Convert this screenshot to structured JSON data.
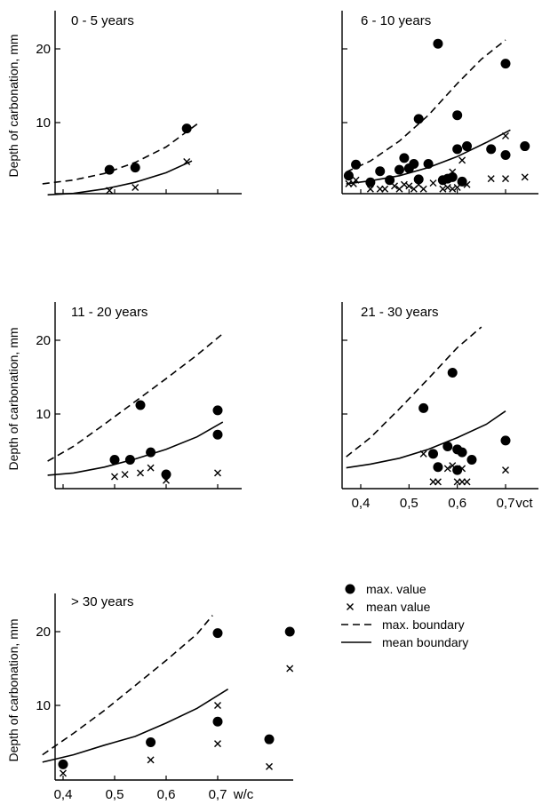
{
  "ylabel": "Depth of carbonation, mm",
  "x_tick_labels": [
    "0,4",
    "0,5",
    "0,6",
    "0,7"
  ],
  "y_tick_labels": [
    "10",
    "20"
  ],
  "legend": [
    {
      "label": "max. value",
      "marker": "filled-circle"
    },
    {
      "label": "mean value",
      "marker": "cross"
    },
    {
      "label": "max. boundary",
      "marker": "dashed-line"
    },
    {
      "label": "mean boundary",
      "marker": "solid-line"
    }
  ],
  "chart_data": [
    {
      "type": "scatter",
      "title": "0 - 5 years",
      "xlabel": "",
      "ylabel": "Depth of carbonation, mm",
      "xlim": [
        0.36,
        0.76
      ],
      "ylim": [
        0,
        24
      ],
      "series": [
        {
          "name": "max. value",
          "marker": "filled-circle",
          "points": [
            [
              0.49,
              3.6
            ],
            [
              0.54,
              3.9
            ],
            [
              0.64,
              9.2
            ]
          ]
        },
        {
          "name": "mean value",
          "marker": "cross",
          "points": [
            [
              0.49,
              0.8
            ],
            [
              0.54,
              1.2
            ],
            [
              0.64,
              4.7
            ]
          ]
        },
        {
          "name": "max. boundary",
          "line": "dashed",
          "points": [
            [
              0.36,
              1.7
            ],
            [
              0.42,
              2.2
            ],
            [
              0.48,
              3.1
            ],
            [
              0.54,
              4.6
            ],
            [
              0.6,
              6.7
            ],
            [
              0.66,
              9.8
            ]
          ]
        },
        {
          "name": "mean boundary",
          "line": "solid",
          "points": [
            [
              0.37,
              0.2
            ],
            [
              0.42,
              0.4
            ],
            [
              0.48,
              1.0
            ],
            [
              0.54,
              1.9
            ],
            [
              0.6,
              3.2
            ],
            [
              0.65,
              4.8
            ]
          ]
        }
      ]
    },
    {
      "type": "scatter",
      "title": "6 - 10 years",
      "xlabel": "",
      "ylabel": "",
      "xlim": [
        0.36,
        0.76
      ],
      "ylim": [
        0,
        24
      ],
      "series": [
        {
          "name": "max. value",
          "marker": "filled-circle",
          "points": [
            [
              0.375,
              2.8
            ],
            [
              0.39,
              4.3
            ],
            [
              0.42,
              1.9
            ],
            [
              0.44,
              3.4
            ],
            [
              0.46,
              2.2
            ],
            [
              0.48,
              3.6
            ],
            [
              0.49,
              5.2
            ],
            [
              0.5,
              3.8
            ],
            [
              0.51,
              4.4
            ],
            [
              0.52,
              2.3
            ],
            [
              0.52,
              10.5
            ],
            [
              0.54,
              4.4
            ],
            [
              0.56,
              20.7
            ],
            [
              0.57,
              2.2
            ],
            [
              0.58,
              2.4
            ],
            [
              0.59,
              2.6
            ],
            [
              0.6,
              11.0
            ],
            [
              0.6,
              6.4
            ],
            [
              0.61,
              2.0
            ],
            [
              0.62,
              6.8
            ],
            [
              0.67,
              6.4
            ],
            [
              0.7,
              18.0
            ],
            [
              0.7,
              5.6
            ],
            [
              0.74,
              6.8
            ]
          ]
        },
        {
          "name": "mean value",
          "marker": "cross",
          "points": [
            [
              0.375,
              1.7
            ],
            [
              0.385,
              1.7
            ],
            [
              0.39,
              2.2
            ],
            [
              0.42,
              1.0
            ],
            [
              0.44,
              1.0
            ],
            [
              0.45,
              1.0
            ],
            [
              0.47,
              1.4
            ],
            [
              0.48,
              1.0
            ],
            [
              0.49,
              1.6
            ],
            [
              0.5,
              1.4
            ],
            [
              0.51,
              1.0
            ],
            [
              0.52,
              1.6
            ],
            [
              0.53,
              1.0
            ],
            [
              0.55,
              1.8
            ],
            [
              0.57,
              1.0
            ],
            [
              0.58,
              1.2
            ],
            [
              0.59,
              3.3
            ],
            [
              0.59,
              1.0
            ],
            [
              0.6,
              1.2
            ],
            [
              0.61,
              4.9
            ],
            [
              0.62,
              1.6
            ],
            [
              0.67,
              2.4
            ],
            [
              0.7,
              8.2
            ],
            [
              0.7,
              2.4
            ],
            [
              0.74,
              2.6
            ]
          ]
        },
        {
          "name": "max. boundary",
          "line": "dashed",
          "points": [
            [
              0.37,
              3.3
            ],
            [
              0.42,
              4.8
            ],
            [
              0.48,
              7.5
            ],
            [
              0.54,
              11.0
            ],
            [
              0.6,
              15.3
            ],
            [
              0.65,
              18.6
            ],
            [
              0.7,
              21.2
            ]
          ]
        },
        {
          "name": "mean boundary",
          "line": "solid",
          "points": [
            [
              0.37,
              1.7
            ],
            [
              0.42,
              2.1
            ],
            [
              0.48,
              2.8
            ],
            [
              0.54,
              3.9
            ],
            [
              0.6,
              5.4
            ],
            [
              0.66,
              7.3
            ],
            [
              0.71,
              9.0
            ]
          ]
        }
      ]
    },
    {
      "type": "scatter",
      "title": "11 - 20 years",
      "xlabel": "",
      "ylabel": "Depth of carbonation, mm",
      "xlim": [
        0.36,
        0.76
      ],
      "ylim": [
        0,
        24
      ],
      "series": [
        {
          "name": "max. value",
          "marker": "filled-circle",
          "points": [
            [
              0.5,
              3.8
            ],
            [
              0.53,
              3.8
            ],
            [
              0.55,
              11.2
            ],
            [
              0.57,
              4.8
            ],
            [
              0.6,
              1.8
            ],
            [
              0.7,
              10.5
            ],
            [
              0.7,
              7.2
            ]
          ]
        },
        {
          "name": "mean value",
          "marker": "cross",
          "points": [
            [
              0.5,
              1.5
            ],
            [
              0.52,
              1.8
            ],
            [
              0.55,
              2.0
            ],
            [
              0.57,
              2.7
            ],
            [
              0.6,
              1.0
            ],
            [
              0.7,
              2.0
            ]
          ]
        },
        {
          "name": "max. boundary",
          "line": "dashed",
          "points": [
            [
              0.37,
              3.6
            ],
            [
              0.42,
              5.6
            ],
            [
              0.48,
              8.6
            ],
            [
              0.54,
              11.7
            ],
            [
              0.6,
              14.8
            ],
            [
              0.66,
              18.0
            ],
            [
              0.71,
              20.9
            ]
          ]
        },
        {
          "name": "mean boundary",
          "line": "solid",
          "points": [
            [
              0.37,
              1.7
            ],
            [
              0.42,
              2.0
            ],
            [
              0.48,
              2.8
            ],
            [
              0.54,
              3.9
            ],
            [
              0.6,
              5.2
            ],
            [
              0.66,
              6.9
            ],
            [
              0.71,
              8.9
            ]
          ]
        }
      ]
    },
    {
      "type": "scatter",
      "title": "21 - 30 years",
      "xlabel": "vct",
      "ylabel": "",
      "xlim": [
        0.36,
        0.76
      ],
      "ylim": [
        0,
        24
      ],
      "series": [
        {
          "name": "max. value",
          "marker": "filled-circle",
          "points": [
            [
              0.53,
              10.8
            ],
            [
              0.55,
              4.6
            ],
            [
              0.56,
              2.8
            ],
            [
              0.58,
              5.6
            ],
            [
              0.59,
              15.6
            ],
            [
              0.6,
              5.2
            ],
            [
              0.6,
              2.4
            ],
            [
              0.61,
              4.8
            ],
            [
              0.63,
              3.8
            ],
            [
              0.7,
              6.4
            ]
          ]
        },
        {
          "name": "mean value",
          "marker": "cross",
          "points": [
            [
              0.53,
              4.6
            ],
            [
              0.55,
              0.8
            ],
            [
              0.56,
              0.8
            ],
            [
              0.58,
              2.6
            ],
            [
              0.59,
              3.0
            ],
            [
              0.6,
              0.8
            ],
            [
              0.61,
              2.6
            ],
            [
              0.61,
              0.8
            ],
            [
              0.62,
              0.8
            ],
            [
              0.7,
              2.4
            ]
          ]
        },
        {
          "name": "max. boundary",
          "line": "dashed",
          "points": [
            [
              0.37,
              4.2
            ],
            [
              0.42,
              6.8
            ],
            [
              0.48,
              10.7
            ],
            [
              0.54,
              14.8
            ],
            [
              0.6,
              19.0
            ],
            [
              0.65,
              21.8
            ]
          ]
        },
        {
          "name": "mean boundary",
          "line": "solid",
          "points": [
            [
              0.37,
              2.7
            ],
            [
              0.42,
              3.2
            ],
            [
              0.48,
              4.0
            ],
            [
              0.54,
              5.2
            ],
            [
              0.6,
              6.8
            ],
            [
              0.66,
              8.6
            ],
            [
              0.7,
              10.4
            ]
          ]
        }
      ]
    },
    {
      "type": "scatter",
      "title": "> 30 years",
      "xlabel": "w/c",
      "ylabel": "Depth of carbonation, mm",
      "xlim": [
        0.36,
        0.86
      ],
      "ylim": [
        0,
        24
      ],
      "series": [
        {
          "name": "max. value",
          "marker": "filled-circle",
          "points": [
            [
              0.4,
              2.0
            ],
            [
              0.57,
              5.0
            ],
            [
              0.7,
              19.8
            ],
            [
              0.7,
              7.8
            ],
            [
              0.8,
              5.4
            ],
            [
              0.84,
              20.0
            ]
          ]
        },
        {
          "name": "mean value",
          "marker": "cross",
          "points": [
            [
              0.4,
              0.8
            ],
            [
              0.57,
              2.6
            ],
            [
              0.7,
              10.0
            ],
            [
              0.7,
              4.8
            ],
            [
              0.8,
              1.7
            ],
            [
              0.84,
              15.0
            ]
          ]
        },
        {
          "name": "max. boundary",
          "line": "dashed",
          "points": [
            [
              0.36,
              3.3
            ],
            [
              0.42,
              6.2
            ],
            [
              0.48,
              9.3
            ],
            [
              0.54,
              12.7
            ],
            [
              0.6,
              16.1
            ],
            [
              0.66,
              19.7
            ],
            [
              0.69,
              22.2
            ]
          ]
        },
        {
          "name": "mean boundary",
          "line": "solid",
          "points": [
            [
              0.36,
              2.3
            ],
            [
              0.42,
              3.3
            ],
            [
              0.48,
              4.6
            ],
            [
              0.54,
              5.8
            ],
            [
              0.6,
              7.6
            ],
            [
              0.66,
              9.6
            ],
            [
              0.72,
              12.2
            ]
          ]
        }
      ]
    }
  ]
}
